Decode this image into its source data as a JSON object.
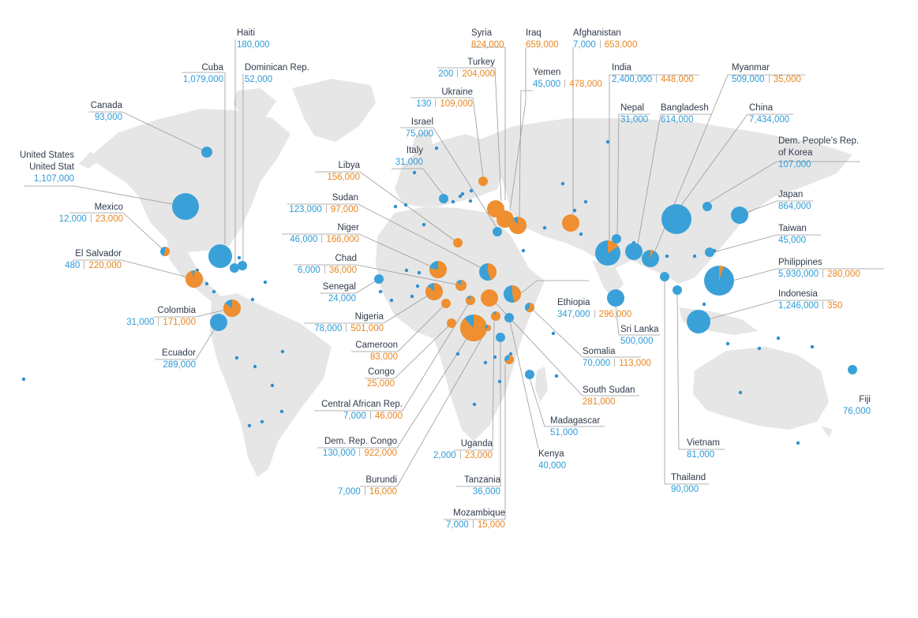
{
  "colors": {
    "land": "#e6e6e6",
    "series_a": "#3aa1d8",
    "series_b": "#ef8f2f",
    "text": "#2f3a4a"
  },
  "countries": [
    {
      "key": "canada",
      "name": "Canada",
      "v1": "93,000",
      "v2": ""
    },
    {
      "key": "haiti",
      "name": "Haiti",
      "v1": "180,000",
      "v2": ""
    },
    {
      "key": "cuba",
      "name": "Cuba",
      "v1": "1,079,000",
      "v2": ""
    },
    {
      "key": "dominican",
      "name": "Dominican Rep.",
      "v1": "52,000",
      "v2": ""
    },
    {
      "key": "usa",
      "name": "United States\nUnited Stat",
      "v1": "1,107,000",
      "v2": ""
    },
    {
      "key": "mexico",
      "name": "Mexico",
      "v1": "12,000",
      "v2": "23,000"
    },
    {
      "key": "elsalvador",
      "name": "El Salvador",
      "v1": "480",
      "v2": "220,000"
    },
    {
      "key": "colombia",
      "name": "Colombia",
      "v1": "31,000",
      "v2": "171,000"
    },
    {
      "key": "ecuador",
      "name": "Ecuador",
      "v1": "289,000",
      "v2": ""
    },
    {
      "key": "syria",
      "name": "Syria",
      "v1": "",
      "v2": "824,000"
    },
    {
      "key": "iraq",
      "name": "Iraq",
      "v1": "",
      "v2": "659,000"
    },
    {
      "key": "afghanistan",
      "name": "Afghanistan",
      "v1": "7,000",
      "v2": "653,000"
    },
    {
      "key": "turkey",
      "name": "Turkey",
      "v1": "200",
      "v2": "204,000"
    },
    {
      "key": "yemen",
      "name": "Yemen",
      "v1": "45,000",
      "v2": "478,000"
    },
    {
      "key": "ukraine",
      "name": "Ukraine",
      "v1": "130",
      "v2": "109,000"
    },
    {
      "key": "israel",
      "name": "Israel",
      "v1": "75,000",
      "v2": ""
    },
    {
      "key": "italy",
      "name": "Italy",
      "v1": "31,000",
      "v2": ""
    },
    {
      "key": "libya",
      "name": "Libya",
      "v1": "",
      "v2": "156,000"
    },
    {
      "key": "sudan",
      "name": "Sudan",
      "v1": "123,000",
      "v2": "97,000"
    },
    {
      "key": "niger",
      "name": "Niger",
      "v1": "46,000",
      "v2": "166,000"
    },
    {
      "key": "chad",
      "name": "Chad",
      "v1": "6,000",
      "v2": "36,000"
    },
    {
      "key": "senegal",
      "name": "Senegal",
      "v1": "24,000",
      "v2": ""
    },
    {
      "key": "nigeria",
      "name": "Nigeria",
      "v1": "78,000",
      "v2": "501,000"
    },
    {
      "key": "cameroon",
      "name": "Cameroon",
      "v1": "",
      "v2": "83,000"
    },
    {
      "key": "congo",
      "name": "Congo",
      "v1": "",
      "v2": "25,000"
    },
    {
      "key": "car",
      "name": "Central African Rep.",
      "v1": "7,000",
      "v2": "46,000"
    },
    {
      "key": "drc",
      "name": "Dem. Rep. Congo",
      "v1": "130,000",
      "v2": "922,000"
    },
    {
      "key": "burundi",
      "name": "Burundi",
      "v1": "7,000",
      "v2": "16,000"
    },
    {
      "key": "uganda",
      "name": "Uganda",
      "v1": "2,000",
      "v2": "23,000"
    },
    {
      "key": "tanzania",
      "name": "Tanzania",
      "v1": "36,000",
      "v2": ""
    },
    {
      "key": "mozambique",
      "name": "Mozambique",
      "v1": "7,000",
      "v2": "15,000"
    },
    {
      "key": "kenya",
      "name": "Kenya",
      "v1": "40,000",
      "v2": ""
    },
    {
      "key": "madagascar",
      "name": "Madagascar",
      "v1": "51,000",
      "v2": ""
    },
    {
      "key": "southsudan",
      "name": "South Sudan",
      "v1": "",
      "v2": "281,000"
    },
    {
      "key": "somalia",
      "name": "Somalia",
      "v1": "70,000",
      "v2": "113,000"
    },
    {
      "key": "ethiopia",
      "name": "Ethiopia",
      "v1": "347,000",
      "v2": "296,000"
    },
    {
      "key": "india",
      "name": "India",
      "v1": "2,400,000",
      "v2": "448,000"
    },
    {
      "key": "nepal",
      "name": "Nepal",
      "v1": "31,000",
      "v2": ""
    },
    {
      "key": "bangladesh",
      "name": "Bangladesh",
      "v1": "614,000",
      "v2": ""
    },
    {
      "key": "myanmar",
      "name": "Myanmar",
      "v1": "509,000",
      "v2": "35,000"
    },
    {
      "key": "china",
      "name": "China",
      "v1": "7,434,000",
      "v2": ""
    },
    {
      "key": "dprk",
      "name": "Dem. People’s Rep.\nof Korea",
      "v1": "107,000",
      "v2": ""
    },
    {
      "key": "japan",
      "name": "Japan",
      "v1": "864,000",
      "v2": ""
    },
    {
      "key": "taiwan",
      "name": "Taiwan",
      "v1": "45,000",
      "v2": ""
    },
    {
      "key": "philippines",
      "name": "Philippines",
      "v1": "5,930,000",
      "v2": "280,000"
    },
    {
      "key": "indonesia",
      "name": "Indonesia",
      "v1": "1,246,000",
      "v2": "350"
    },
    {
      "key": "srilanka",
      "name": "Sri Lanka",
      "v1": "500,000",
      "v2": ""
    },
    {
      "key": "vietnam",
      "name": "Vietnam",
      "v1": "81,000",
      "v2": ""
    },
    {
      "key": "thailand",
      "name": "Thailand",
      "v1": "90,000",
      "v2": ""
    },
    {
      "key": "fiji",
      "name": "Fiji",
      "v1": "76,000",
      "v2": ""
    }
  ]
}
